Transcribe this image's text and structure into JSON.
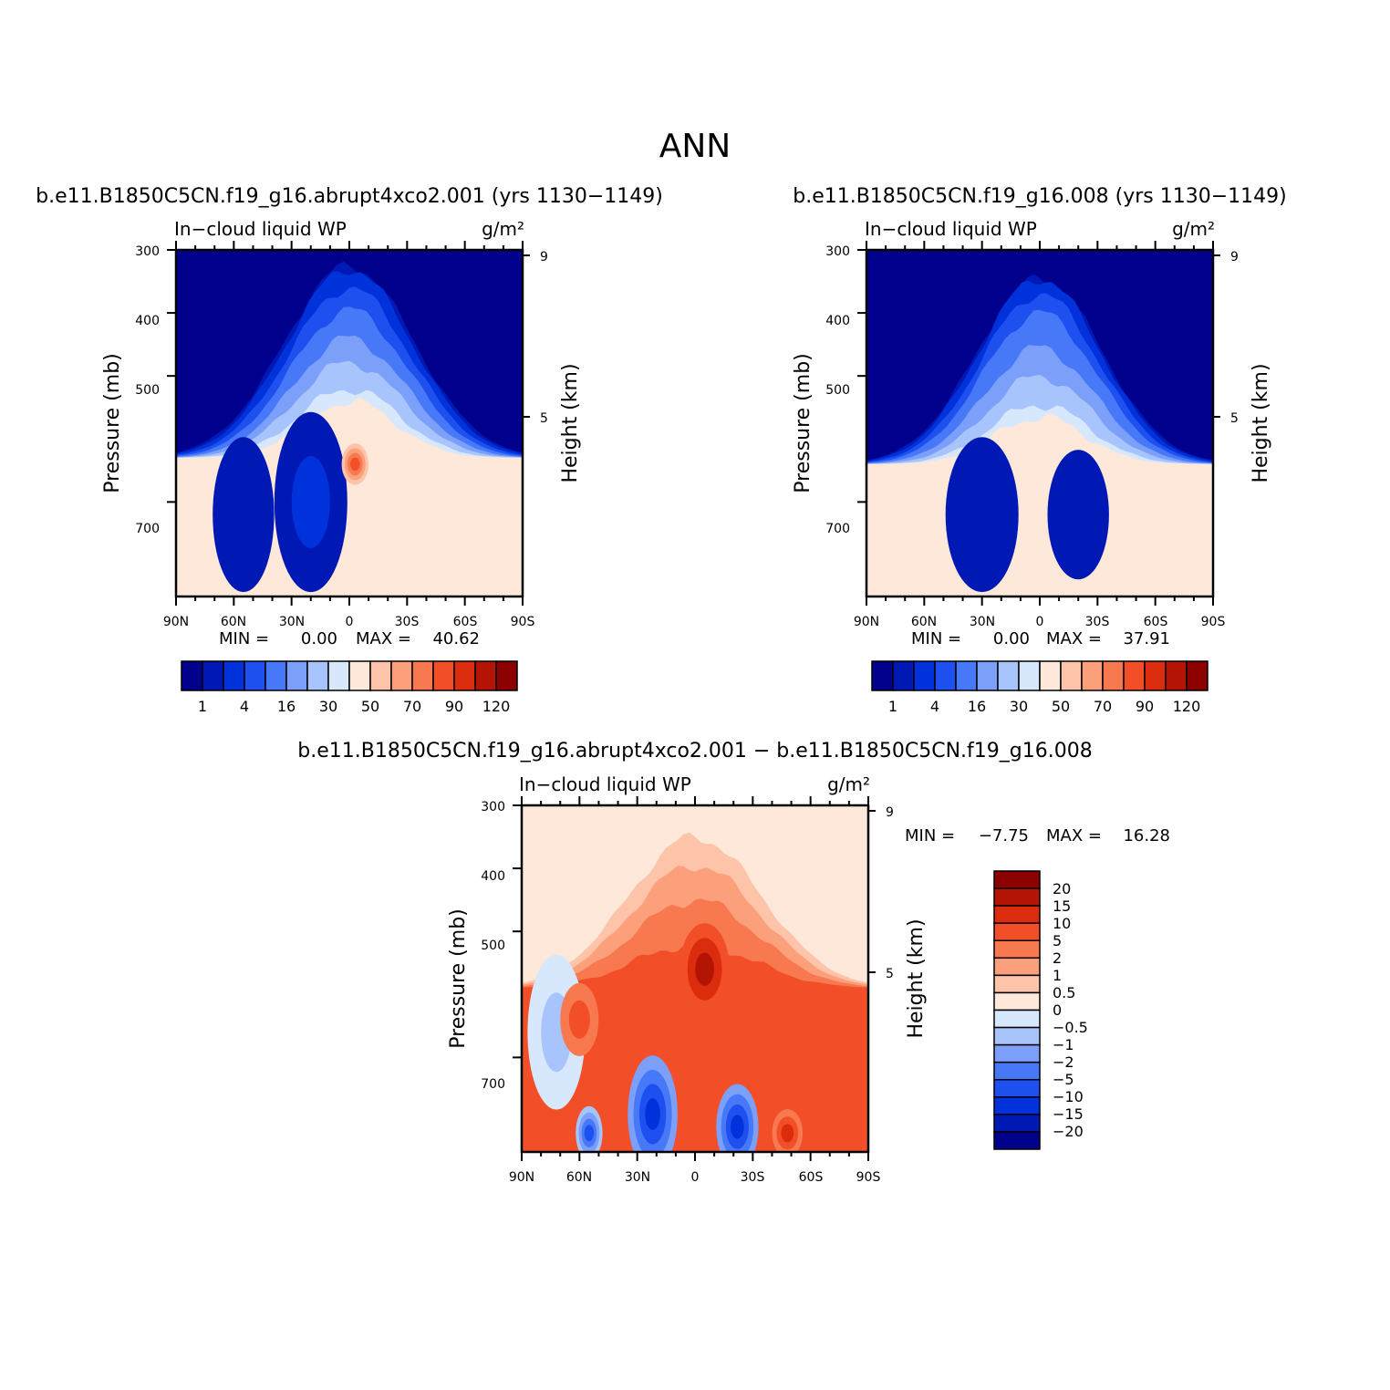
{
  "figure": {
    "title": "ANN",
    "palettes": {
      "abs": [
        "#00008c",
        "#0018b4",
        "#0032dc",
        "#1e50f0",
        "#4678f8",
        "#7ca0fa",
        "#a8c4fc",
        "#d7e8fc",
        "#fde8da",
        "#fdc4aa",
        "#fca07c",
        "#f87850",
        "#f24e28",
        "#dc2c0e",
        "#b41404",
        "#8c0000"
      ],
      "diff": [
        "#00008c",
        "#0018b4",
        "#0032dc",
        "#1e50f0",
        "#4678f8",
        "#7ca0fa",
        "#a8c4fc",
        "#d7e8fc",
        "#fde8da",
        "#fdc4aa",
        "#fca07c",
        "#f87850",
        "#f24e28",
        "#dc2c0e",
        "#b41404",
        "#8c0000"
      ]
    }
  },
  "chart_data": [
    {
      "id": "left",
      "type": "heatmap",
      "title": "b.e11.B1850C5CN.f19_g16.abrupt4xco2.001 (yrs 1130−1149)",
      "subtitle_left": "In−cloud liquid WP",
      "units": "g/m²",
      "ylabel": "Pressure (mb)",
      "ylabel_right": "Height (km)",
      "xticks": [
        "90N",
        "60N",
        "30N",
        "0",
        "30S",
        "60S",
        "90S"
      ],
      "yticks": [
        "300",
        "400",
        "500",
        "700"
      ],
      "yticks_right": [
        "9",
        "5"
      ],
      "stats": {
        "min_label": "MIN =",
        "min": "0.00",
        "max_label": "MAX =",
        "max": "40.62"
      },
      "colorbar_labels": [
        "1",
        "4",
        "16",
        "30",
        "50",
        "70",
        "90",
        "120"
      ],
      "ylim": [
        850,
        300
      ],
      "field": {
        "kind": "abs",
        "x0": 0,
        "sx": 32,
        "bg": 0,
        "amp": 7.9,
        "bot": 630,
        "tops": [
          325,
          330,
          360,
          395,
          440,
          478,
          520,
          540
        ],
        "floor": [
          [
            -90,
            720
          ],
          [
            -60,
            760
          ],
          [
            -30,
            800
          ],
          [
            0,
            830
          ],
          [
            30,
            800
          ],
          [
            60,
            770
          ],
          [
            90,
            740
          ]
        ],
        "blobs": [
          [
            -20,
            700,
            18,
            140,
            1.4
          ],
          [
            -55,
            720,
            15,
            120,
            1.0
          ],
          [
            3,
            640,
            6,
            30,
            8.6
          ]
        ]
      }
    },
    {
      "id": "right",
      "type": "heatmap",
      "title": "b.e11.B1850C5CN.f19_g16.008 (yrs 1130−1149)",
      "subtitle_left": "In−cloud liquid WP",
      "units": "g/m²",
      "ylabel": "Pressure (mb)",
      "ylabel_right": "Height (km)",
      "xticks": [
        "90N",
        "60N",
        "30N",
        "0",
        "30S",
        "60S",
        "90S"
      ],
      "yticks": [
        "300",
        "400",
        "500",
        "700"
      ],
      "yticks_right": [
        "9",
        "5"
      ],
      "stats": {
        "min_label": "MIN =",
        "min": "0.00",
        "max_label": "MAX =",
        "max": "37.91"
      },
      "colorbar_labels": [
        "1",
        "4",
        "16",
        "30",
        "50",
        "70",
        "90",
        "120"
      ],
      "ylim": [
        850,
        300
      ],
      "field": {
        "kind": "abs",
        "x0": 0,
        "sx": 30,
        "bg": 0,
        "amp": 7.9,
        "bot": 640,
        "tops": [
          345,
          345,
          370,
          400,
          455,
          500,
          545,
          565
        ],
        "floor": [
          [
            -90,
            720
          ],
          [
            -60,
            760
          ],
          [
            -30,
            800
          ],
          [
            0,
            830
          ],
          [
            30,
            800
          ],
          [
            60,
            770
          ],
          [
            90,
            740
          ]
        ],
        "blobs": [
          [
            -30,
            720,
            18,
            120,
            1.0
          ],
          [
            20,
            720,
            15,
            100,
            0.8
          ]
        ]
      }
    },
    {
      "id": "diff",
      "type": "heatmap",
      "title": "b.e11.B1850C5CN.f19_g16.abrupt4xco2.001 − b.e11.B1850C5CN.f19_g16.008",
      "subtitle_left": "In−cloud liquid WP",
      "units": "g/m²",
      "ylabel": "Pressure (mb)",
      "ylabel_right": "Height (km)",
      "xticks": [
        "90N",
        "60N",
        "30N",
        "0",
        "30S",
        "60S",
        "90S"
      ],
      "yticks": [
        "300",
        "400",
        "500",
        "700"
      ],
      "yticks_right": [
        "9",
        "5"
      ],
      "stats": {
        "min_label": "MIN =",
        "min": "−7.75",
        "max_label": "MAX =",
        "max": "16.28"
      },
      "colorbar_labels": [
        "20",
        "15",
        "10",
        "5",
        "2",
        "1",
        "0.5",
        "0",
        "−0.5",
        "−1",
        "−2",
        "−5",
        "−10",
        "−15",
        "−20"
      ],
      "ylim": [
        850,
        300
      ],
      "field": {
        "kind": "diff",
        "x0": 0,
        "sx": 34,
        "bg": 8,
        "amp": 7.5,
        "bot": 590,
        "tops": [
          350,
          395,
          450,
          520
        ],
        "blobs": [
          [
            -22,
            790,
            12,
            90,
            -11.5
          ],
          [
            22,
            810,
            10,
            65,
            -10.5
          ],
          [
            -55,
            820,
            6,
            40,
            -5.5
          ],
          [
            48,
            820,
            7,
            35,
            2.8
          ],
          [
            -72,
            660,
            14,
            120,
            -1.2
          ],
          [
            5,
            560,
            12,
            70,
            3.0
          ],
          [
            -60,
            640,
            9,
            55,
            1.4
          ]
        ]
      }
    }
  ]
}
